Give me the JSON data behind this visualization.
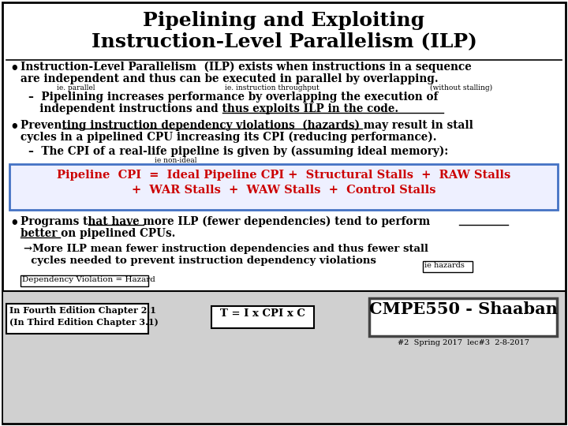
{
  "title_line1": "Pipelining and Exploiting",
  "title_line2": "Instruction-Level Parallelism (ILP)",
  "bg_color": "#ffffff",
  "border_color": "#000000",
  "title_color": "#000000",
  "body_color": "#000000",
  "red_color": "#cc0000",
  "blue_box_color": "#4472c4",
  "footer_bg": "#d0d0d0",
  "bullet1_line1": "Instruction-Level Parallelism  (ILP) exists when instructions in a sequence",
  "bullet1_line2": "are independent and thus can be executed in parallel by overlapping.",
  "annot_ie_parallel": "ie. parallel",
  "annot_throughput": "ie. instruction throughput",
  "annot_without_stalling": "(without stalling)",
  "sub1_line1": "–  Pipelining increases performance by overlapping the execution of",
  "sub1_line2": "   independent instructions and thus exploits ILP in the code.",
  "bullet2_line1": "Preventing instruction dependency violations  (hazards) may result in stall",
  "bullet2_line2": "cycles in a pipelined CPU increasing its CPI (reducing performance).",
  "sub2_line1": "–  The CPI of a real-life pipeline is given by (assuming ideal memory):",
  "annot_non_ideal": "ie non-ideal",
  "box_line1": "Pipeline  CPI  =  Ideal Pipeline CPI +  Structural Stalls  +  RAW Stalls",
  "box_line2": "+  WAR Stalls  +  WAW Stalls  +  Control Stalls",
  "bullet3_line1": "Programs that have more ILP (fewer dependencies) tend to perform",
  "bullet3_line2": "better on pipelined CPUs.",
  "sub3_line1": "→More ILP mean fewer instruction dependencies and thus fewer stall",
  "sub3_line2": "  cycles needed to prevent instruction dependency violations",
  "annot_ie_hazards": "ie hazards",
  "annot_dep_violation": "Dependency Violation = Hazard",
  "footer_left_line1": "In Fourth Edition Chapter 2.1",
  "footer_left_line2": "(In Third Edition Chapter 3.1)",
  "footer_center": "T = I x CPI x C",
  "footer_right": "CMPE550 - Shaaban",
  "footer_sub": "#2  Spring 2017  lec#3  2-8-2017"
}
